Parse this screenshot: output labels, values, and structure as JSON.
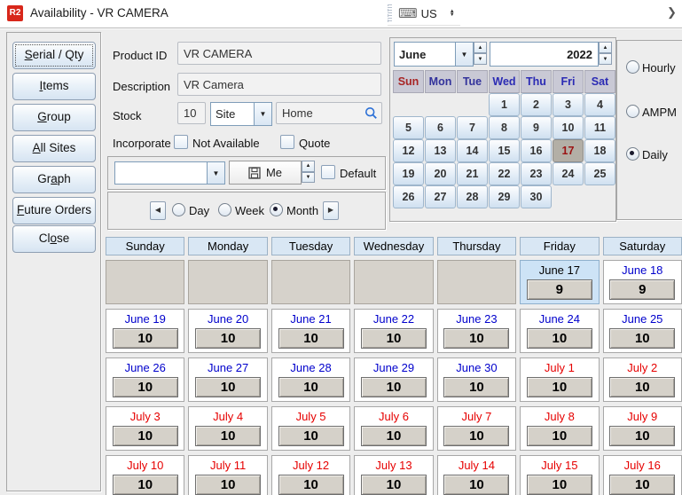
{
  "window": {
    "icon_text": "R2",
    "title": "Availability - VR CAMERA"
  },
  "language_bar": {
    "label": "US"
  },
  "icons": {
    "keyboard": "⌨",
    "chevron_right": "❯",
    "dropdown": "▼",
    "up": "▲",
    "down": "▼",
    "prev": "◀",
    "next": "▶"
  },
  "colors": {
    "accent_red": "#d8271a",
    "label_blue": "#0000cc",
    "label_red": "#e60000",
    "selected_cell": "#cde3f6"
  },
  "sidebar": {
    "buttons": [
      {
        "label": "Serial / Qty",
        "u": 0,
        "focused": true
      },
      {
        "label": "Items",
        "u": 0
      },
      {
        "label": "Group",
        "u": 0
      },
      {
        "label": "All Sites",
        "u": 0
      },
      {
        "label": "Graph",
        "u": 2
      },
      {
        "label": "Future Orders",
        "u": 0
      },
      {
        "label": "Close",
        "u": 2
      }
    ]
  },
  "form": {
    "product_id_label": "Product ID",
    "product_id_value": "VR CAMERA",
    "description_label": "Description",
    "description_value": "VR Camera",
    "stock_label": "Stock",
    "stock_value": "10",
    "site_selector_value": "Site",
    "site_value": "Home",
    "incorporate_label": "Incorporate",
    "not_available_label": "Not Available",
    "not_available_checked": false,
    "quote_label": "Quote",
    "quote_checked": false,
    "preset_combo_value": "",
    "me_button_label": "Me",
    "default_label": "Default",
    "default_checked": false
  },
  "period_nav": {
    "options": [
      {
        "label": "Day",
        "selected": false
      },
      {
        "label": "Week",
        "selected": false
      },
      {
        "label": "Month",
        "selected": true
      }
    ]
  },
  "mini_calendar": {
    "month": "June",
    "year": "2022",
    "selected_day": 17,
    "weekdays": [
      {
        "label": "Sun",
        "color": "#a82525"
      },
      {
        "label": "Mon",
        "color": "#32329b"
      },
      {
        "label": "Tue",
        "color": "#32329b"
      },
      {
        "label": "Wed",
        "color": "#2b2bb4"
      },
      {
        "label": "Thu",
        "color": "#2b2bb4"
      },
      {
        "label": "Fri",
        "color": "#2b2bb4"
      },
      {
        "label": "Sat",
        "color": "#2b2bb4"
      }
    ],
    "weeks": [
      [
        null,
        null,
        null,
        1,
        2,
        3,
        4
      ],
      [
        5,
        6,
        7,
        8,
        9,
        10,
        11
      ],
      [
        12,
        13,
        14,
        15,
        16,
        17,
        18
      ],
      [
        19,
        20,
        21,
        22,
        23,
        24,
        25
      ],
      [
        26,
        27,
        28,
        29,
        30,
        null,
        null
      ]
    ]
  },
  "view_modes": {
    "options": [
      {
        "label": "Hourly",
        "selected": false
      },
      {
        "label": "AMPM",
        "selected": false
      },
      {
        "label": "Daily",
        "selected": true
      }
    ]
  },
  "big_calendar": {
    "day_headers": [
      "Sunday",
      "Monday",
      "Tuesday",
      "Wednesday",
      "Thursday",
      "Friday",
      "Saturday"
    ],
    "rows": [
      [
        null,
        null,
        null,
        null,
        null,
        {
          "label": "June 17",
          "value": "9",
          "color": "#000000",
          "selected": true
        },
        {
          "label": "June 18",
          "value": "9",
          "color": "#0000cc"
        }
      ],
      [
        {
          "label": "June 19",
          "value": "10",
          "color": "#0000cc"
        },
        {
          "label": "June 20",
          "value": "10",
          "color": "#0000cc"
        },
        {
          "label": "June 21",
          "value": "10",
          "color": "#0000cc"
        },
        {
          "label": "June 22",
          "value": "10",
          "color": "#0000cc"
        },
        {
          "label": "June 23",
          "value": "10",
          "color": "#0000cc"
        },
        {
          "label": "June 24",
          "value": "10",
          "color": "#0000cc"
        },
        {
          "label": "June 25",
          "value": "10",
          "color": "#0000cc"
        }
      ],
      [
        {
          "label": "June 26",
          "value": "10",
          "color": "#0000cc"
        },
        {
          "label": "June 27",
          "value": "10",
          "color": "#0000cc"
        },
        {
          "label": "June 28",
          "value": "10",
          "color": "#0000cc"
        },
        {
          "label": "June 29",
          "value": "10",
          "color": "#0000cc"
        },
        {
          "label": "June 30",
          "value": "10",
          "color": "#0000cc"
        },
        {
          "label": "July 1",
          "value": "10",
          "color": "#e60000"
        },
        {
          "label": "July 2",
          "value": "10",
          "color": "#e60000"
        }
      ],
      [
        {
          "label": "July 3",
          "value": "10",
          "color": "#e60000"
        },
        {
          "label": "July 4",
          "value": "10",
          "color": "#e60000"
        },
        {
          "label": "July 5",
          "value": "10",
          "color": "#e60000"
        },
        {
          "label": "July 6",
          "value": "10",
          "color": "#e60000"
        },
        {
          "label": "July 7",
          "value": "10",
          "color": "#e60000"
        },
        {
          "label": "July 8",
          "value": "10",
          "color": "#e60000"
        },
        {
          "label": "July 9",
          "value": "10",
          "color": "#e60000"
        }
      ],
      [
        {
          "label": "July 10",
          "value": "10",
          "color": "#e60000"
        },
        {
          "label": "July 11",
          "value": "10",
          "color": "#e60000"
        },
        {
          "label": "July 12",
          "value": "10",
          "color": "#e60000"
        },
        {
          "label": "July 13",
          "value": "10",
          "color": "#e60000"
        },
        {
          "label": "July 14",
          "value": "10",
          "color": "#e60000"
        },
        {
          "label": "July 15",
          "value": "10",
          "color": "#e60000"
        },
        {
          "label": "July 16",
          "value": "10",
          "color": "#e60000"
        }
      ]
    ]
  }
}
